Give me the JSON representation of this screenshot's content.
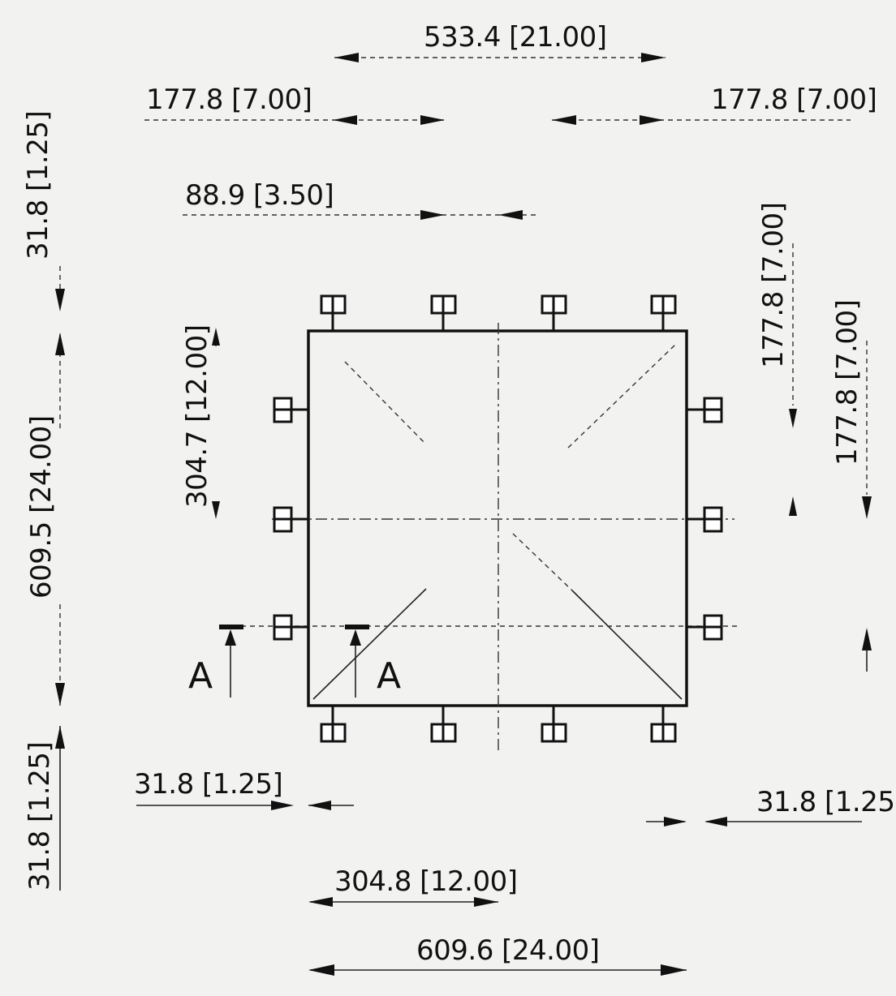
{
  "dimensions": {
    "top_overall": "533.4 [21.00]",
    "top_left": "177.8 [7.00]",
    "top_right": "177.8 [7.00]",
    "top_small": "88.9 [3.50]",
    "left_top_margin": "31.8 [1.25]",
    "left_half": "304.7 [12.00]",
    "left_overall": "609.5 [24.00]",
    "left_bottom_margin": "31.8 [1.25]",
    "right_upper": "177.8 [7.00]",
    "right_lower": "177.8 [7.00]",
    "bottom_left_margin": "31.8 [1.25]",
    "bottom_right_margin": "31.8 [1.25]",
    "bottom_half": "304.8 [12.00]",
    "bottom_overall": "609.6 [24.00]"
  },
  "section": {
    "left_label": "A",
    "right_label": "A"
  }
}
